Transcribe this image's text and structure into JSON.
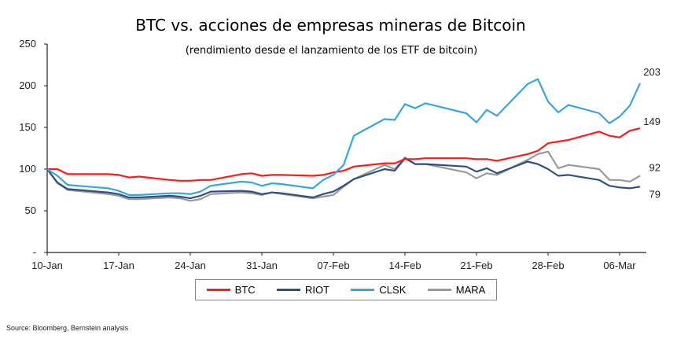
{
  "chart_data": {
    "type": "line",
    "title": "BTC vs. acciones de empresas mineras de Bitcoin",
    "subtitle": "(rendimiento desde el lanzamiento de los ETF de bitcoin)",
    "xlabel": "",
    "ylabel": "",
    "ylim": [
      0,
      250
    ],
    "yticks": [
      {
        "value": 250,
        "label": "250"
      },
      {
        "value": 200,
        "label": "200"
      },
      {
        "value": 150,
        "label": "150"
      },
      {
        "value": 100,
        "label": "100"
      },
      {
        "value": 50,
        "label": "50"
      },
      {
        "value": 0,
        "label": "-"
      }
    ],
    "xticks": [
      {
        "day": 0,
        "label": "10-Jan"
      },
      {
        "day": 7,
        "label": "17-Jan"
      },
      {
        "day": 14,
        "label": "24-Jan"
      },
      {
        "day": 21,
        "label": "31-Jan"
      },
      {
        "day": 28,
        "label": "07-Feb"
      },
      {
        "day": 35,
        "label": "14-Feb"
      },
      {
        "day": 42,
        "label": "21-Feb"
      },
      {
        "day": 49,
        "label": "28-Feb"
      },
      {
        "day": 56,
        "label": "06-Mar"
      }
    ],
    "x_days_since_10_jan": [
      0,
      1,
      2,
      6,
      7,
      8,
      9,
      12,
      13,
      14,
      15,
      16,
      19,
      20,
      21,
      22,
      23,
      26,
      27,
      28,
      29,
      30,
      33,
      34,
      35,
      36,
      37,
      41,
      42,
      43,
      44,
      47,
      48,
      49,
      50,
      51,
      54,
      55,
      56,
      57,
      58
    ],
    "series": [
      {
        "name": "BTC",
        "color": "#ff1a1a",
        "end_label": "149",
        "values": [
          100,
          100,
          94,
          94,
          93,
          90,
          91,
          87,
          86,
          86,
          87,
          87,
          94,
          95,
          92,
          93,
          93,
          92,
          93,
          96,
          98,
          103,
          107,
          107,
          112,
          112,
          113,
          113,
          112,
          112,
          110,
          118,
          122,
          131,
          133,
          135,
          145,
          140,
          138,
          146,
          149
        ]
      },
      {
        "name": "RIOT",
        "color": "#2f4f86",
        "end_label": "79",
        "values": [
          100,
          84,
          76,
          72,
          70,
          66,
          66,
          68,
          67,
          65,
          68,
          73,
          74,
          73,
          70,
          72,
          71,
          66,
          70,
          73,
          80,
          88,
          100,
          98,
          113,
          106,
          106,
          103,
          97,
          101,
          95,
          109,
          106,
          100,
          92,
          93,
          87,
          80,
          78,
          77,
          79
        ]
      },
      {
        "name": "CLSK",
        "color": "#3aa5dd",
        "end_label": "203",
        "values": [
          100,
          92,
          81,
          77,
          74,
          69,
          69,
          71,
          71,
          70,
          73,
          80,
          85,
          84,
          80,
          83,
          82,
          77,
          87,
          93,
          105,
          140,
          160,
          159,
          178,
          173,
          179,
          167,
          156,
          171,
          164,
          202,
          208,
          181,
          168,
          177,
          167,
          155,
          163,
          176,
          203
        ]
      },
      {
        "name": "MARA",
        "color": "#999999",
        "end_label": "92",
        "values": [
          100,
          83,
          75,
          70,
          68,
          64,
          64,
          66,
          65,
          62,
          64,
          70,
          72,
          71,
          69,
          72,
          70,
          65,
          67,
          69,
          79,
          88,
          105,
          100,
          114,
          106,
          106,
          96,
          89,
          95,
          93,
          111,
          118,
          121,
          101,
          105,
          100,
          87,
          87,
          85,
          92
        ]
      }
    ],
    "legend_position": "bottom",
    "grid": false
  },
  "source": "Source: Bloomberg, Bernstein analysis"
}
